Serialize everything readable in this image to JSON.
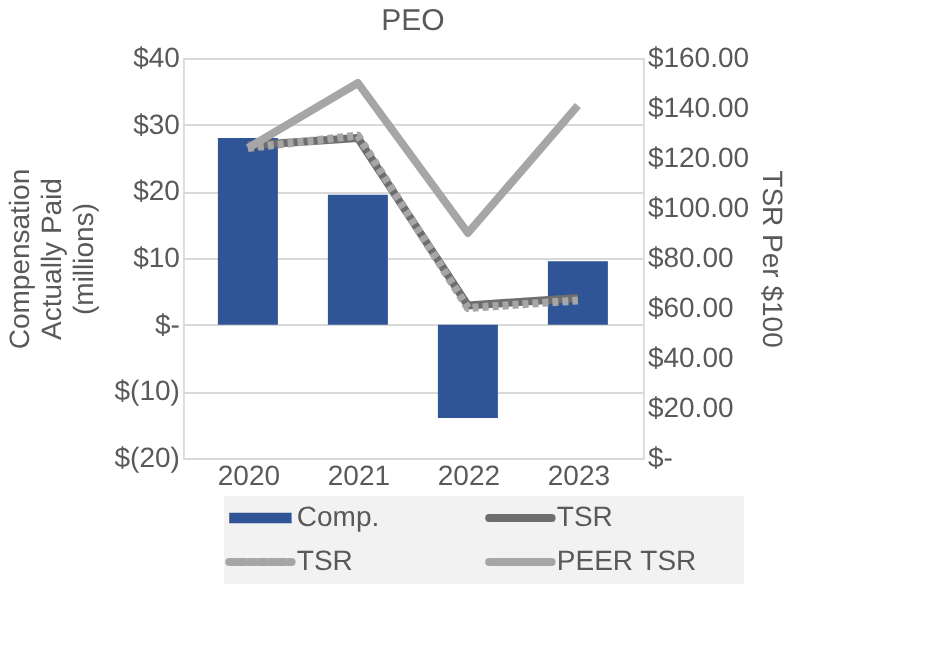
{
  "chart_data": {
    "type": "bar",
    "title": "PEO",
    "ylabel": "Compensation\nActually Paid\n(millions)",
    "y2label": "TSR Per $100",
    "categories": [
      "2020",
      "2021",
      "2022",
      "2023"
    ],
    "series": [
      {
        "name": "Comp.",
        "color": "#2f5597",
        "values": [
          28,
          19.5,
          -14,
          9.5
        ]
      },
      {
        "name": "TSR",
        "type": "line",
        "axis": "y2",
        "color": "#6e6e6e",
        "line_style": "solid",
        "values": [
          125,
          128,
          61,
          64
        ]
      },
      {
        "name": "TSR",
        "type": "line",
        "axis": "y2",
        "color": "#a6a6a6",
        "line_style": "dotted",
        "values": [
          124,
          129,
          60,
          63
        ]
      },
      {
        "name": "PEER TSR",
        "type": "line",
        "axis": "y2",
        "color": "#a6a6a6",
        "line_style": "solid",
        "values": [
          124,
          150,
          90,
          141
        ]
      }
    ],
    "ylim": [
      -20,
      40
    ],
    "yticks": [
      {
        "value": -20,
        "label": "$(20)"
      },
      {
        "value": -10,
        "label": "$(10)"
      },
      {
        "value": 0,
        "label": "$-"
      },
      {
        "value": 10,
        "label": "$10"
      },
      {
        "value": 20,
        "label": "$20"
      },
      {
        "value": 30,
        "label": "$30"
      },
      {
        "value": 40,
        "label": "$40"
      }
    ],
    "y2lim": [
      0,
      160
    ],
    "y2ticks": [
      {
        "value": 0,
        "label": "$-"
      },
      {
        "value": 20,
        "label": "$20.00"
      },
      {
        "value": 40,
        "label": "$40.00"
      },
      {
        "value": 60,
        "label": "$60.00"
      },
      {
        "value": 80,
        "label": "$80.00"
      },
      {
        "value": 100,
        "label": "$100.00"
      },
      {
        "value": 120,
        "label": "$120.00"
      },
      {
        "value": 140,
        "label": "$140.00"
      },
      {
        "value": 160,
        "label": "$160.00"
      }
    ],
    "grid": "y",
    "legend": "bottom",
    "marker": "none"
  }
}
